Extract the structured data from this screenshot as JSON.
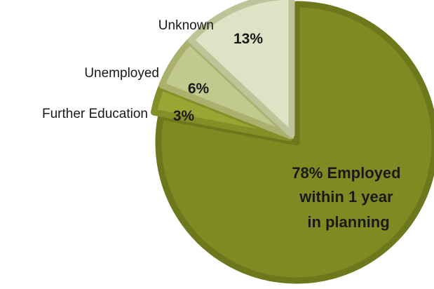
{
  "chart_data": {
    "type": "pie",
    "title": "",
    "slices": [
      {
        "label": "",
        "value": 78,
        "value_label": "78%",
        "data_label_lines": [
          "78% Employed",
          "within 1 year",
          "in planning"
        ],
        "color": "#7f8b22",
        "edge": "#6d771b"
      },
      {
        "label": "Further Education",
        "value": 3,
        "value_label": "3%",
        "color": "#9aa633",
        "edge": "#858f28"
      },
      {
        "label": "Unemployed",
        "value": 6,
        "value_label": "6%",
        "color": "#c2c98f",
        "edge": "#a9b16d"
      },
      {
        "label": "Unknown",
        "value": 13,
        "value_label": "13%",
        "color": "#dfe2c4",
        "edge": "#bec39a"
      }
    ],
    "start_angle_deg": 0,
    "direction": "clockwise",
    "legend": "none"
  }
}
